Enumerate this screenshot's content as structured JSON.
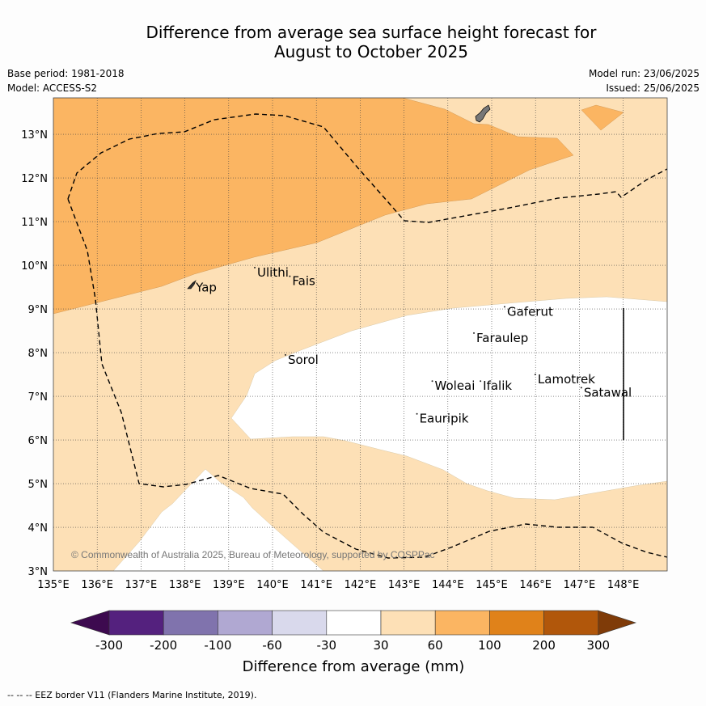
{
  "title": {
    "line1": "Difference from average sea surface height forecast for",
    "line2": "August to October 2025"
  },
  "meta": {
    "base_period": "Base period: 1981-2018",
    "model": "Model: ACCESS-S2",
    "model_run": "Model run: 23/06/2025",
    "issued": "Issued: 25/06/2025"
  },
  "axes": {
    "lon_labels": [
      "135°E",
      "136°E",
      "137°E",
      "138°E",
      "139°E",
      "140°E",
      "141°E",
      "142°E",
      "143°E",
      "144°E",
      "145°E",
      "146°E",
      "147°E",
      "148°E"
    ],
    "lat_labels": [
      "3°N",
      "4°N",
      "5°N",
      "6°N",
      "7°N",
      "8°N",
      "9°N",
      "10°N",
      "11°N",
      "12°N",
      "13°N"
    ]
  },
  "places": [
    {
      "name": "Yap",
      "lon": 138.25,
      "lat": 9.45
    },
    {
      "name": "Ulithi",
      "lon": 139.65,
      "lat": 9.8
    },
    {
      "name": "Fais",
      "lon": 140.45,
      "lat": 9.6
    },
    {
      "name": "Sorol",
      "lon": 140.35,
      "lat": 7.8
    },
    {
      "name": "Gaferut",
      "lon": 145.35,
      "lat": 8.9
    },
    {
      "name": "Faraulep",
      "lon": 144.65,
      "lat": 8.3
    },
    {
      "name": "Woleai",
      "lon": 143.7,
      "lat": 7.2
    },
    {
      "name": "Ifalik",
      "lon": 144.8,
      "lat": 7.2
    },
    {
      "name": "Lamotrek",
      "lon": 146.05,
      "lat": 7.35
    },
    {
      "name": "Satawal",
      "lon": 147.1,
      "lat": 7.05
    },
    {
      "name": "Eauripik",
      "lon": 143.35,
      "lat": 6.45
    }
  ],
  "copyright": "© Commonwealth of Australia 2025, Bureau of Meteorology, supported by COSPPac",
  "colorbar": {
    "label": "Difference from average (mm)",
    "ticks": [
      "-300",
      "-200",
      "-100",
      "-60",
      "-30",
      "30",
      "60",
      "100",
      "200",
      "300"
    ],
    "colors": [
      "#3d0a4f",
      "#54217e",
      "#8073ad",
      "#b0a8d2",
      "#d9d9ec",
      "#ffffff",
      "#fde0b6",
      "#fbb562",
      "#e0821a",
      "#b1570b",
      "#7f3b08"
    ]
  },
  "colors": {
    "light_orange": "#fde0b6",
    "mid_orange": "#fbb562",
    "white": "#ffffff"
  },
  "footer": "--  --  -- EEZ border V11 (Flanders Marine Institute, 2019)."
}
